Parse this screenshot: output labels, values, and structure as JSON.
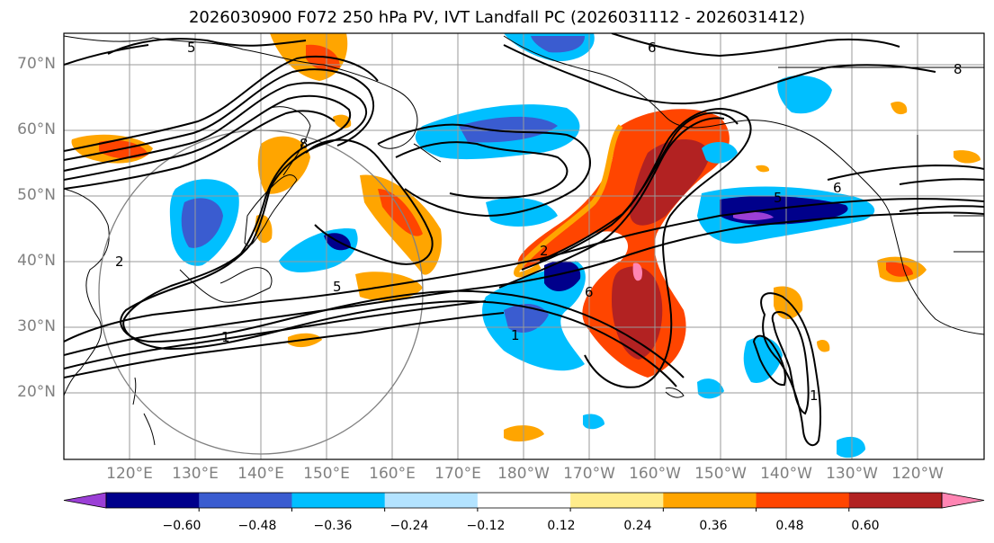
{
  "title": "2026030900 F072 250 hPa PV, IVT Landfall PC (2026031112 - 2026031412)",
  "lat_labels": [
    "70°N",
    "60°N",
    "50°N",
    "40°N",
    "30°N",
    "20°N"
  ],
  "lon_labels": [
    "120°E",
    "130°E",
    "140°E",
    "150°E",
    "160°E",
    "170°E",
    "180°W",
    "170°W",
    "160°W",
    "150°W",
    "140°W",
    "130°W",
    "120°W"
  ],
  "colorbar": {
    "ticks": [
      "−0.60",
      "−0.48",
      "−0.36",
      "−0.24",
      "−0.12",
      "0.12",
      "0.24",
      "0.36",
      "0.48",
      "0.60"
    ],
    "colors": [
      "#9b3fd6",
      "#00008b",
      "#3a5cd0",
      "#00bfff",
      "#b3e3ff",
      "#ffffff",
      "#ffec8b",
      "#ffa500",
      "#ff4500",
      "#b22222",
      "#ff85b3"
    ]
  },
  "contour_labels": [
    "1",
    "2",
    "5",
    "6",
    "8",
    "5",
    "1",
    "2",
    "6",
    "8",
    "5",
    "6",
    "1"
  ]
}
